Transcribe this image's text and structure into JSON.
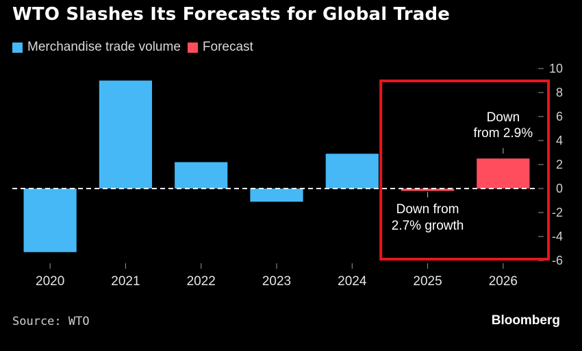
{
  "title": "WTO Slashes Its Forecasts for Global Trade",
  "legend": [
    {
      "label": "Merchandise trade volume",
      "color": "#45b8f5"
    },
    {
      "label": "Forecast",
      "color": "#ff4d5e"
    }
  ],
  "source": "Source: WTO",
  "brand": "Bloomberg",
  "colors": {
    "actual": "#45b8f5",
    "forecast": "#ff4d5e",
    "highlight": "#e8141e",
    "background": "#000000"
  },
  "chart_data": {
    "type": "bar",
    "title": "WTO Slashes Its Forecasts for Global Trade",
    "categories": [
      "2020",
      "2021",
      "2022",
      "2023",
      "2024",
      "2025",
      "2026"
    ],
    "series": [
      {
        "name": "Merchandise trade volume",
        "values": [
          -5.3,
          9.0,
          2.2,
          -1.1,
          2.9,
          null,
          null
        ]
      },
      {
        "name": "Forecast",
        "values": [
          null,
          null,
          null,
          null,
          null,
          -0.2,
          2.5
        ]
      }
    ],
    "ylim": [
      -6,
      10
    ],
    "yticks": [
      10,
      8,
      6,
      4,
      2,
      0,
      -2,
      -4,
      -6
    ],
    "xlabel": "",
    "ylabel": "",
    "annotations": [
      {
        "lines": [
          "Down",
          "from 2.9%"
        ],
        "category": "2026"
      },
      {
        "lines": [
          "Down from",
          "2.7% growth"
        ],
        "category": "2025"
      }
    ]
  }
}
